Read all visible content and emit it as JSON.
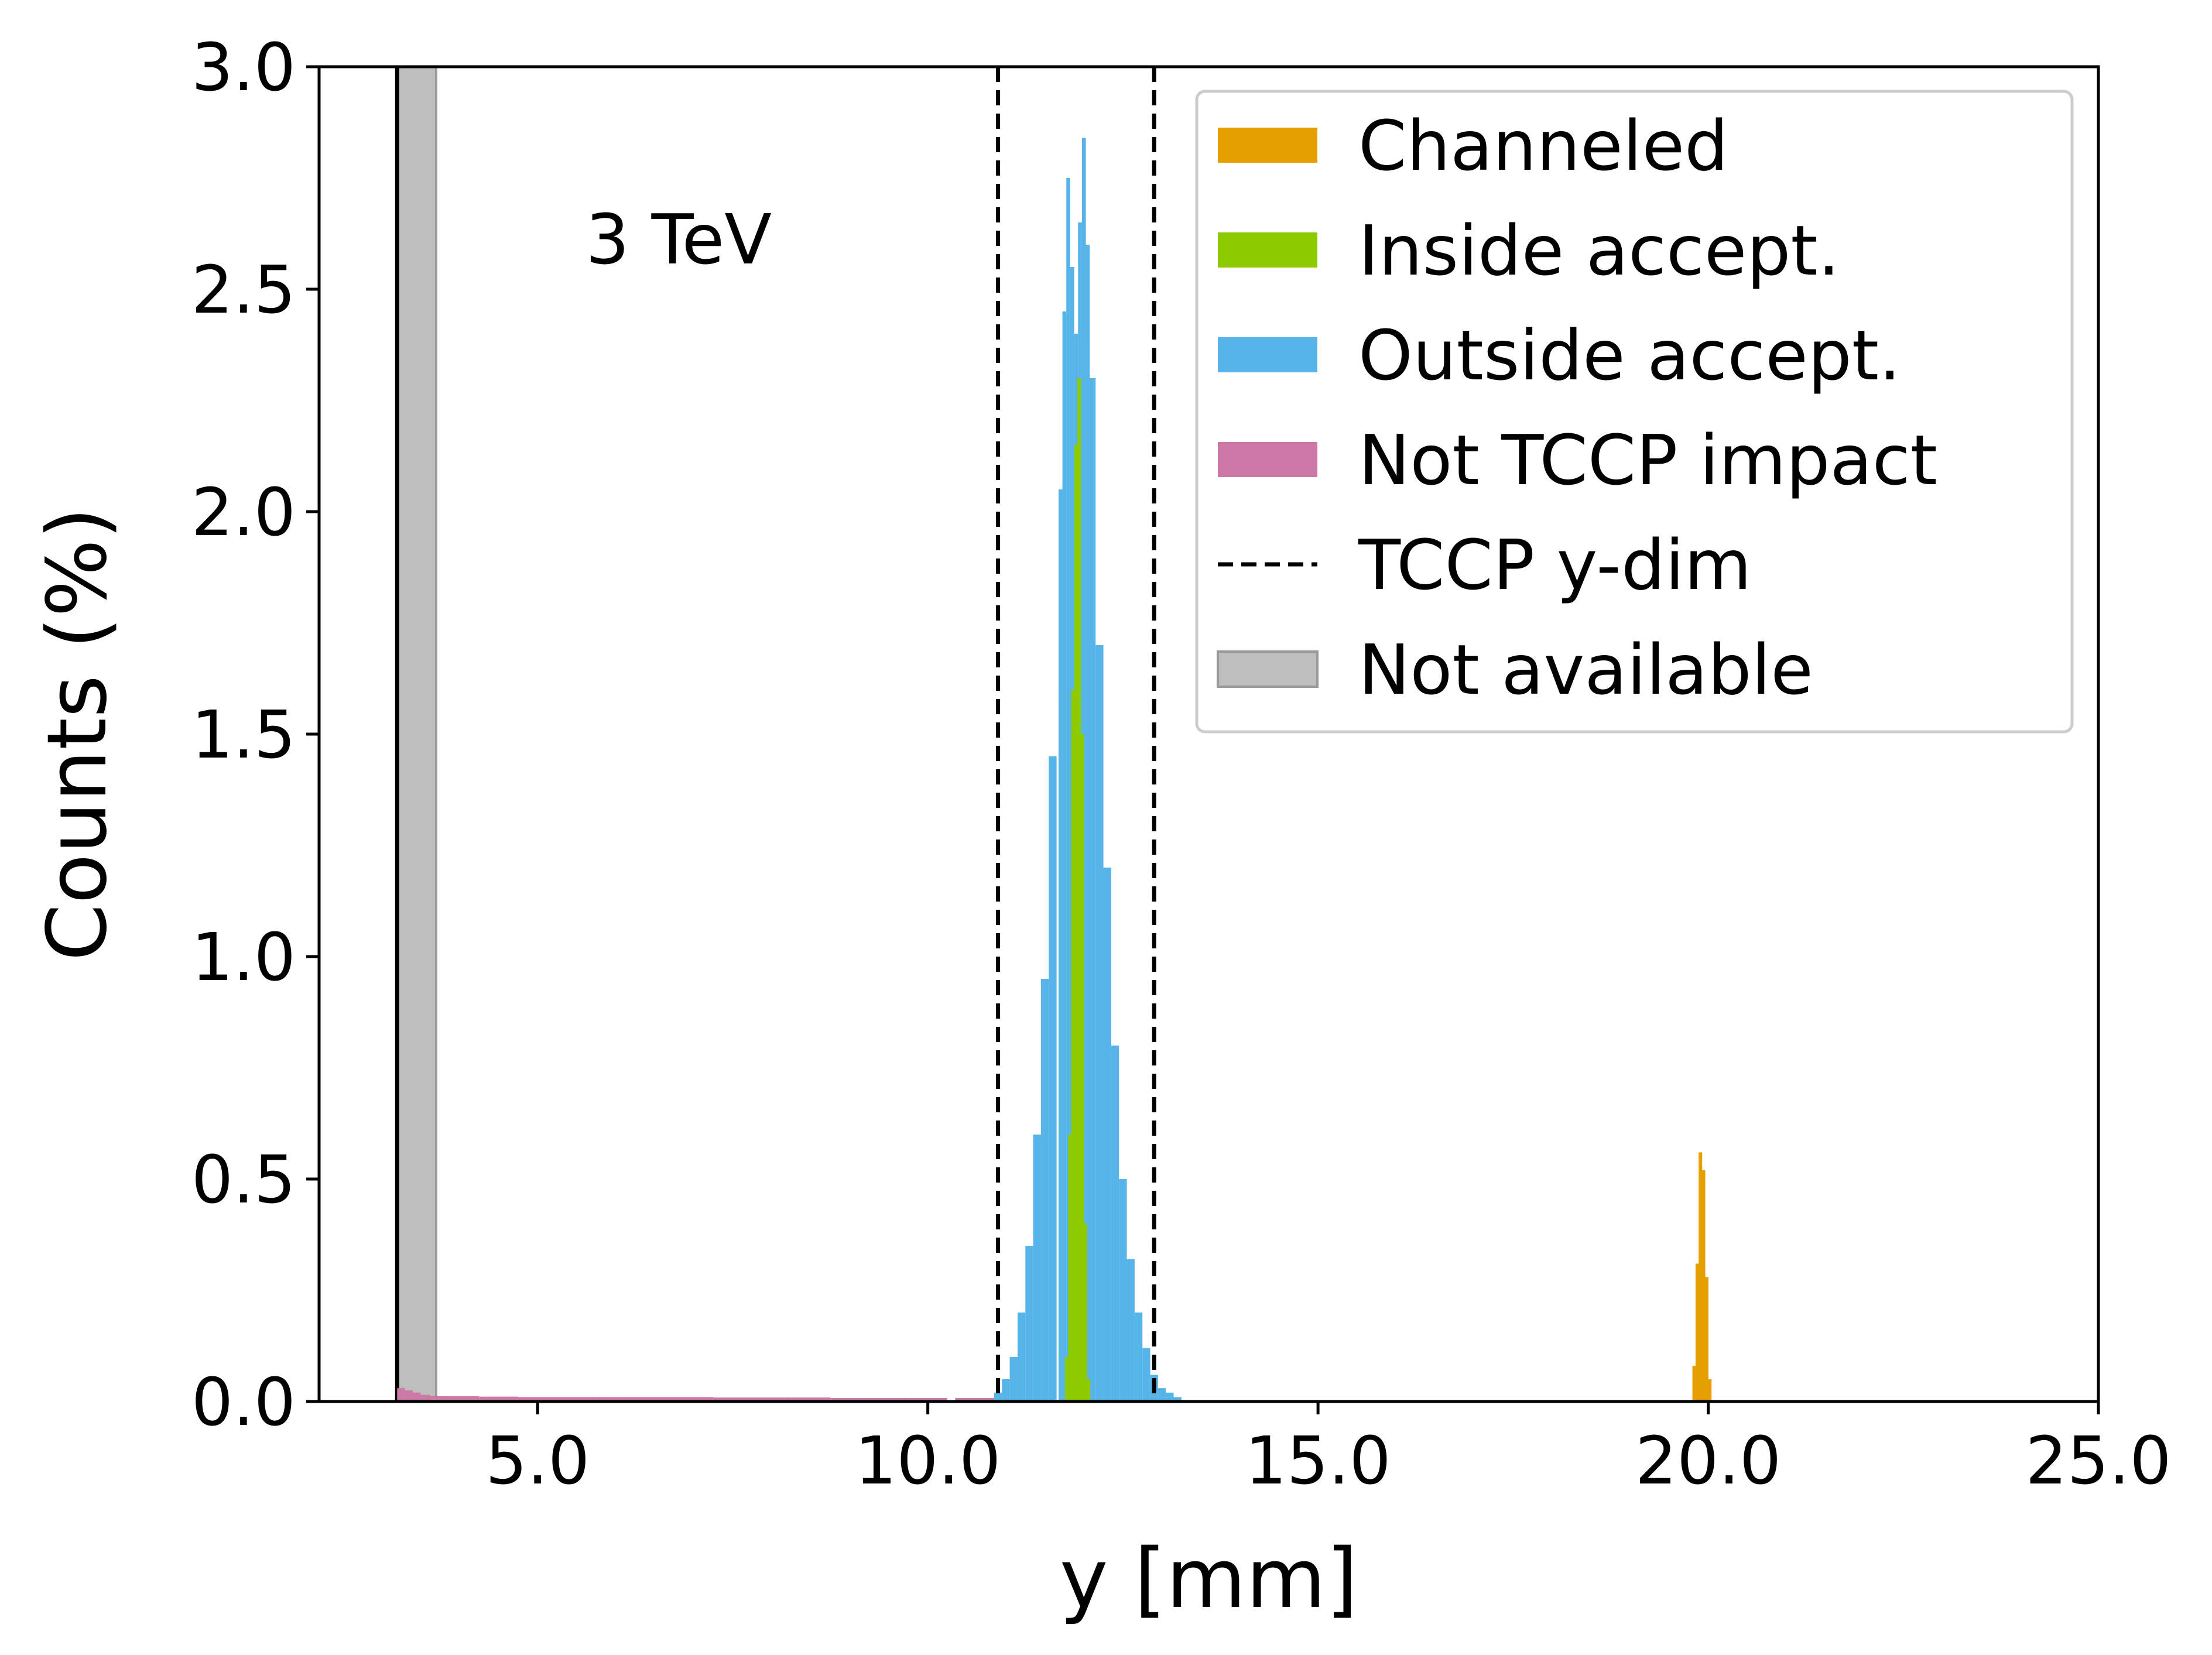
{
  "chart_data": {
    "type": "bar",
    "xlabel": "y [mm]",
    "ylabel": "Counts (%)",
    "xlim": [
      2.2,
      25.0
    ],
    "ylim": [
      0.0,
      3.0
    ],
    "xticks": [
      "5.0",
      "10.0",
      "15.0",
      "20.0",
      "25.0"
    ],
    "xtick_values": [
      5,
      10,
      15,
      20,
      25
    ],
    "yticks": [
      "0.0",
      "0.5",
      "1.0",
      "1.5",
      "2.0",
      "2.5",
      "3.0"
    ],
    "ytick_values": [
      0,
      0.5,
      1,
      1.5,
      2,
      2.5,
      3
    ],
    "grid": false,
    "legend_position": "top-right",
    "annotation": "3 TeV",
    "series": [
      {
        "name": "Channeled",
        "color": "#E69F00",
        "kind": "histogram",
        "x": [
          19.82,
          19.86,
          19.9,
          19.94,
          19.98,
          20.02
        ],
        "y": [
          0.08,
          0.31,
          0.56,
          0.52,
          0.28,
          0.05
        ]
      },
      {
        "name": "Inside accept.",
        "color": "#8DCB00",
        "kind": "histogram",
        "x": [
          11.78,
          11.82,
          11.86,
          11.9,
          11.94,
          11.98,
          12.02,
          12.06
        ],
        "y": [
          0.1,
          0.6,
          1.6,
          2.15,
          2.3,
          1.5,
          0.4,
          0.05
        ]
      },
      {
        "name": "Outside accept.",
        "color": "#56B4E9",
        "kind": "histogram",
        "x": [
          10.9,
          11.0,
          11.1,
          11.2,
          11.3,
          11.4,
          11.5,
          11.6,
          11.7,
          11.75,
          11.8,
          11.85,
          11.9,
          11.95,
          12.0,
          12.05,
          12.1,
          12.2,
          12.3,
          12.4,
          12.5,
          12.6,
          12.7,
          12.8,
          12.9,
          13.0,
          13.1,
          13.2
        ],
        "y": [
          0.02,
          0.05,
          0.1,
          0.2,
          0.35,
          0.6,
          0.95,
          1.45,
          2.05,
          2.45,
          2.75,
          2.55,
          2.4,
          2.65,
          2.84,
          2.6,
          2.3,
          1.7,
          1.2,
          0.8,
          0.5,
          0.32,
          0.2,
          0.12,
          0.06,
          0.03,
          0.02,
          0.01
        ]
      },
      {
        "name": "Not TCCP impact",
        "color": "#CC79A7",
        "kind": "histogram",
        "x": [
          3.25,
          3.35,
          3.45,
          3.55,
          3.7,
          4.0,
          4.5,
          5.0,
          5.5,
          6.0,
          6.5,
          7.0,
          7.5,
          8.0,
          8.5,
          9.0,
          9.5,
          10.0,
          10.5,
          10.8
        ],
        "y": [
          0.03,
          0.025,
          0.02,
          0.015,
          0.012,
          0.012,
          0.011,
          0.01,
          0.01,
          0.01,
          0.01,
          0.01,
          0.009,
          0.009,
          0.009,
          0.008,
          0.008,
          0.008,
          0.008,
          0.008
        ]
      }
    ],
    "tccp_y_dim": {
      "name": "TCCP y-dim",
      "style": "dashed",
      "x": [
        10.9,
        12.9
      ]
    },
    "not_available": {
      "name": "Not available",
      "color": "#BEBEBE",
      "x_range": [
        3.2,
        3.7
      ]
    },
    "edge_line_x": 3.2
  }
}
